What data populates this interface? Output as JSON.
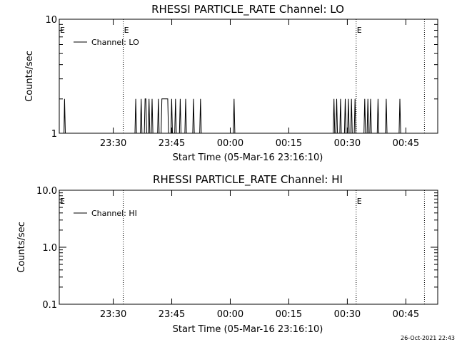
{
  "footer": {
    "timestamp": "26-Oct-2021 22:43"
  },
  "chart_data": [
    {
      "type": "line",
      "title": "RHESSI PARTICLE_RATE Channel: LO",
      "xlabel": "Start Time (05-Mar-16 23:16:10)",
      "ylabel": "Counts/sec",
      "x_unit": "minutes since 23:16:10",
      "xlim": [
        0,
        97
      ],
      "yscale": "log",
      "ylim": [
        1,
        10
      ],
      "yticks": [
        {
          "v": 1,
          "label": "1"
        },
        {
          "v": 10,
          "label": "10"
        }
      ],
      "xticks": [
        {
          "t": 13.83,
          "label": "23:30"
        },
        {
          "t": 28.83,
          "label": "23:45"
        },
        {
          "t": 43.83,
          "label": "00:00"
        },
        {
          "t": 58.83,
          "label": "00:15"
        },
        {
          "t": 73.83,
          "label": "00:30"
        },
        {
          "t": 88.83,
          "label": "00:45"
        }
      ],
      "markers": [
        {
          "t": 16.4,
          "label": "E"
        },
        {
          "t": 76.1,
          "label": "E"
        },
        {
          "t": 93.6,
          "label": ""
        }
      ],
      "edge_labels": [
        {
          "side": "left",
          "label": "E"
        }
      ],
      "legend": {
        "position": "top-left",
        "entries": [
          "Channel: LO"
        ]
      },
      "series": [
        {
          "name": "Channel: LO",
          "values": [
            [
              0,
              1
            ],
            [
              1.2,
              1
            ],
            [
              1.35,
              2
            ],
            [
              1.55,
              1
            ],
            [
              19.4,
              1
            ],
            [
              19.6,
              2
            ],
            [
              19.8,
              1
            ],
            [
              20.8,
              1
            ],
            [
              21,
              2
            ],
            [
              21.2,
              1
            ],
            [
              21.8,
              1
            ],
            [
              22,
              2
            ],
            [
              22.2,
              2
            ],
            [
              22.4,
              1
            ],
            [
              22.8,
              1
            ],
            [
              23,
              2
            ],
            [
              23.2,
              1
            ],
            [
              23.6,
              1
            ],
            [
              23.8,
              2
            ],
            [
              24,
              1
            ],
            [
              25.2,
              1
            ],
            [
              25.4,
              2
            ],
            [
              25.6,
              1
            ],
            [
              26.1,
              1
            ],
            [
              26.3,
              2
            ],
            [
              27.8,
              2
            ],
            [
              28,
              1
            ],
            [
              28.6,
              1
            ],
            [
              28.8,
              2
            ],
            [
              29,
              1
            ],
            [
              29.6,
              1
            ],
            [
              29.8,
              2
            ],
            [
              30,
              1
            ],
            [
              30.8,
              1
            ],
            [
              31,
              2
            ],
            [
              31.2,
              1
            ],
            [
              32.2,
              1
            ],
            [
              32.4,
              2
            ],
            [
              32.6,
              1
            ],
            [
              34.2,
              1
            ],
            [
              34.4,
              2
            ],
            [
              34.6,
              1
            ],
            [
              36,
              1
            ],
            [
              36.2,
              2
            ],
            [
              36.4,
              1
            ],
            [
              44.6,
              1
            ],
            [
              44.8,
              2
            ],
            [
              45,
              1
            ],
            [
              70.2,
              1
            ],
            [
              70.4,
              2
            ],
            [
              70.6,
              1
            ],
            [
              70.9,
              1
            ],
            [
              71.1,
              2
            ],
            [
              71.3,
              1
            ],
            [
              71.9,
              1
            ],
            [
              72.1,
              2
            ],
            [
              72.3,
              1
            ],
            [
              73.1,
              1
            ],
            [
              73.3,
              2
            ],
            [
              73.5,
              1
            ],
            [
              73.9,
              1
            ],
            [
              74.1,
              2
            ],
            [
              74.3,
              1
            ],
            [
              74.7,
              1
            ],
            [
              74.9,
              2
            ],
            [
              75.1,
              1
            ],
            [
              75.6,
              1
            ],
            [
              75.8,
              2
            ],
            [
              76.0,
              1
            ],
            [
              78.1,
              1
            ],
            [
              78.3,
              2
            ],
            [
              78.5,
              1
            ],
            [
              78.9,
              1
            ],
            [
              79.1,
              2
            ],
            [
              79.3,
              1
            ],
            [
              79.6,
              1
            ],
            [
              79.8,
              2
            ],
            [
              80.0,
              1
            ],
            [
              81.5,
              1
            ],
            [
              81.7,
              2
            ],
            [
              81.9,
              1
            ],
            [
              83.6,
              1
            ],
            [
              83.8,
              2
            ],
            [
              84.0,
              1
            ],
            [
              87.1,
              1
            ],
            [
              87.3,
              2
            ],
            [
              87.5,
              1
            ],
            [
              97,
              1
            ]
          ]
        }
      ]
    },
    {
      "type": "line",
      "title": "RHESSI PARTICLE_RATE Channel: HI",
      "xlabel": "Start Time (05-Mar-16 23:16:10)",
      "ylabel": "Counts/sec",
      "x_unit": "minutes since 23:16:10",
      "xlim": [
        0,
        97
      ],
      "yscale": "log",
      "ylim": [
        0.1,
        10
      ],
      "yticks": [
        {
          "v": 0.1,
          "label": "0.1"
        },
        {
          "v": 1.0,
          "label": "1.0"
        },
        {
          "v": 10,
          "label": "10.0"
        }
      ],
      "xticks": [
        {
          "t": 13.83,
          "label": "23:30"
        },
        {
          "t": 28.83,
          "label": "23:45"
        },
        {
          "t": 43.83,
          "label": "00:00"
        },
        {
          "t": 58.83,
          "label": "00:15"
        },
        {
          "t": 73.83,
          "label": "00:30"
        },
        {
          "t": 88.83,
          "label": "00:45"
        }
      ],
      "markers": [
        {
          "t": 16.4,
          "label": ""
        },
        {
          "t": 76.1,
          "label": "E"
        },
        {
          "t": 93.6,
          "label": ""
        }
      ],
      "edge_labels": [
        {
          "side": "left",
          "label": "E"
        }
      ],
      "legend": {
        "position": "top-left",
        "entries": [
          "Channel: HI"
        ]
      },
      "series": [
        {
          "name": "Channel: HI",
          "values": []
        }
      ]
    }
  ]
}
